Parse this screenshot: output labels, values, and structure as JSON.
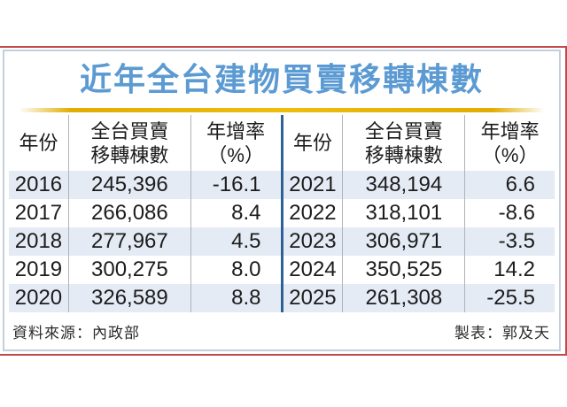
{
  "title": "近年全台建物買賣移轉棟數",
  "table_headers": {
    "year": "年份",
    "volume_line1": "全台買賣",
    "volume_line2": "移轉棟數",
    "rate_line1": "年增率",
    "rate_line2": "（%）"
  },
  "tables": [
    {
      "rows": [
        [
          "2016",
          "245,396",
          "-16.1"
        ],
        [
          "2017",
          "266,086",
          "8.4"
        ],
        [
          "2018",
          "277,967",
          "4.5"
        ],
        [
          "2019",
          "300,275",
          "8.0"
        ],
        [
          "2020",
          "326,589",
          "8.8"
        ]
      ]
    },
    {
      "rows": [
        [
          "2021",
          "348,194",
          "6.6"
        ],
        [
          "2022",
          "318,101",
          "-8.6"
        ],
        [
          "2023",
          "306,971",
          "-3.5"
        ],
        [
          "2024",
          "350,525",
          "14.2"
        ],
        [
          "2025",
          "261,308",
          "-25.5"
        ]
      ]
    }
  ],
  "footer": {
    "source": "資料來源：內政部",
    "credit": "製表：郭及天"
  },
  "colors": {
    "title_blue": "#5b9ad2",
    "gold_rule": "#e8b406",
    "row_stripe_blue": "#e5ebf5",
    "table_divider_blue": "#2e6295",
    "frame_red": "#c24a4a",
    "card_border": "#c3d0dc"
  },
  "chart_data": {
    "type": "table",
    "title": "近年全台建物買賣移轉棟數",
    "columns": [
      "年份",
      "全台買賣移轉棟數",
      "年增率（%）"
    ],
    "rows": [
      [
        2016,
        245396,
        -16.1
      ],
      [
        2017,
        266086,
        8.4
      ],
      [
        2018,
        277967,
        4.5
      ],
      [
        2019,
        300275,
        8.0
      ],
      [
        2020,
        326589,
        8.8
      ],
      [
        2021,
        348194,
        6.6
      ],
      [
        2022,
        318101,
        -8.6
      ],
      [
        2023,
        306971,
        -3.5
      ],
      [
        2024,
        350525,
        14.2
      ],
      [
        2025,
        261308,
        -25.5
      ]
    ],
    "source_note": "資料來源：內政部",
    "credit_note": "製表：郭及天",
    "layout": "two side-by-side panels (2016-2020 left, 2021-2025 right) separated by blue vertical rule"
  }
}
